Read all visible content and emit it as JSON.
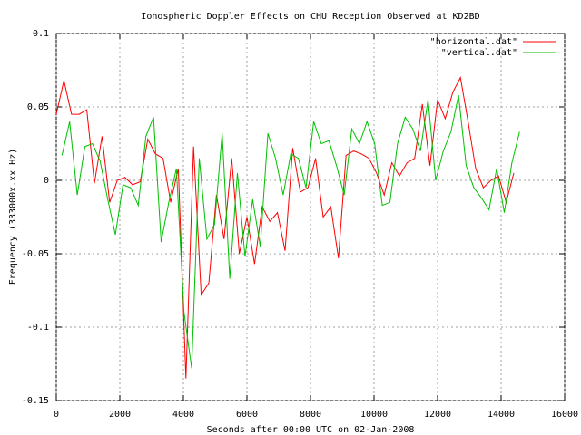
{
  "chart_data": {
    "type": "line",
    "title": "Ionospheric Doppler Effects on CHU Reception Observed at KD2BD",
    "x_label": "Seconds after 00:00 UTC on 02-Jan-2008",
    "y_label": "Frequency (333000x.xx Hz)",
    "xlim": [
      0,
      16000
    ],
    "xticks": [
      0,
      2000,
      4000,
      6000,
      8000,
      10000,
      12000,
      14000,
      16000
    ],
    "ylim": [
      -0.15,
      0.1
    ],
    "yticks": [
      0.1,
      0.05,
      0,
      -0.05,
      -0.1,
      -0.15
    ],
    "grid": true,
    "legend": "top-right",
    "series": [
      {
        "name": "\"horizontal.dat\"",
        "color": "#ff0000",
        "x": [
          0,
          240,
          480,
          720,
          960,
          1200,
          1440,
          1680,
          1920,
          2160,
          2400,
          2640,
          2880,
          3120,
          3360,
          3600,
          3840,
          4080,
          4320,
          4560,
          4800,
          5040,
          5280,
          5520,
          5760,
          6000,
          6240,
          6480,
          6720,
          6960,
          7200,
          7440,
          7680,
          7920,
          8160,
          8400,
          8640,
          8880,
          9120,
          9360,
          9600,
          9840,
          10080,
          10320,
          10560,
          10800,
          11040,
          11280,
          11520,
          11760,
          12000,
          12240,
          12480,
          12720,
          12960,
          13200,
          13440,
          13680,
          13920,
          14160,
          14400
        ],
        "values": [
          0.045,
          0.068,
          0.045,
          0.045,
          0.048,
          -0.002,
          0.03,
          -0.015,
          0,
          0.002,
          -0.003,
          -0.001,
          0.028,
          0.018,
          0.015,
          -0.015,
          0.008,
          -0.135,
          0.023,
          -0.078,
          -0.07,
          -0.01,
          -0.04,
          0.015,
          -0.05,
          -0.025,
          -0.057,
          -0.018,
          -0.028,
          -0.022,
          -0.048,
          0.022,
          -0.008,
          -0.005,
          0.015,
          -0.025,
          -0.018,
          -0.053,
          0.017,
          0.02,
          0.018,
          0.015,
          0.005,
          -0.01,
          0.012,
          0.003,
          0.012,
          0.015,
          0.052,
          0.01,
          0.055,
          0.042,
          0.06,
          0.07,
          0.04,
          0.008,
          -0.005,
          0,
          0.003,
          -0.015,
          0.005
        ]
      },
      {
        "name": "\"vertical.dat\"",
        "color": "#00c000",
        "x": [
          180,
          420,
          660,
          900,
          1140,
          1380,
          1620,
          1860,
          2100,
          2340,
          2580,
          2820,
          3060,
          3300,
          3540,
          3780,
          4020,
          4260,
          4500,
          4740,
          4980,
          5220,
          5460,
          5700,
          5940,
          6180,
          6420,
          6660,
          6900,
          7140,
          7380,
          7620,
          7860,
          8100,
          8340,
          8580,
          8820,
          9060,
          9300,
          9540,
          9780,
          10020,
          10260,
          10500,
          10740,
          10980,
          11220,
          11460,
          11700,
          11940,
          12180,
          12420,
          12660,
          12900,
          13140,
          13380,
          13620,
          13860,
          14100,
          14340,
          14580
        ],
        "values": [
          0.017,
          0.04,
          -0.01,
          0.023,
          0.025,
          0.013,
          -0.013,
          -0.037,
          -0.003,
          -0.005,
          -0.017,
          0.03,
          0.043,
          -0.042,
          -0.015,
          0.008,
          -0.09,
          -0.128,
          0.015,
          -0.04,
          -0.03,
          0.032,
          -0.067,
          0.005,
          -0.052,
          -0.013,
          -0.045,
          0.032,
          0.015,
          -0.01,
          0.018,
          0.015,
          -0.005,
          0.04,
          0.025,
          0.027,
          0.01,
          -0.01,
          0.035,
          0.025,
          0.04,
          0.025,
          -0.017,
          -0.015,
          0.025,
          0.043,
          0.035,
          0.02,
          0.055,
          0,
          0.02,
          0.033,
          0.058,
          0.01,
          -0.005,
          -0.012,
          -0.02,
          0.008,
          -0.022,
          0.012,
          0.033
        ]
      }
    ]
  }
}
